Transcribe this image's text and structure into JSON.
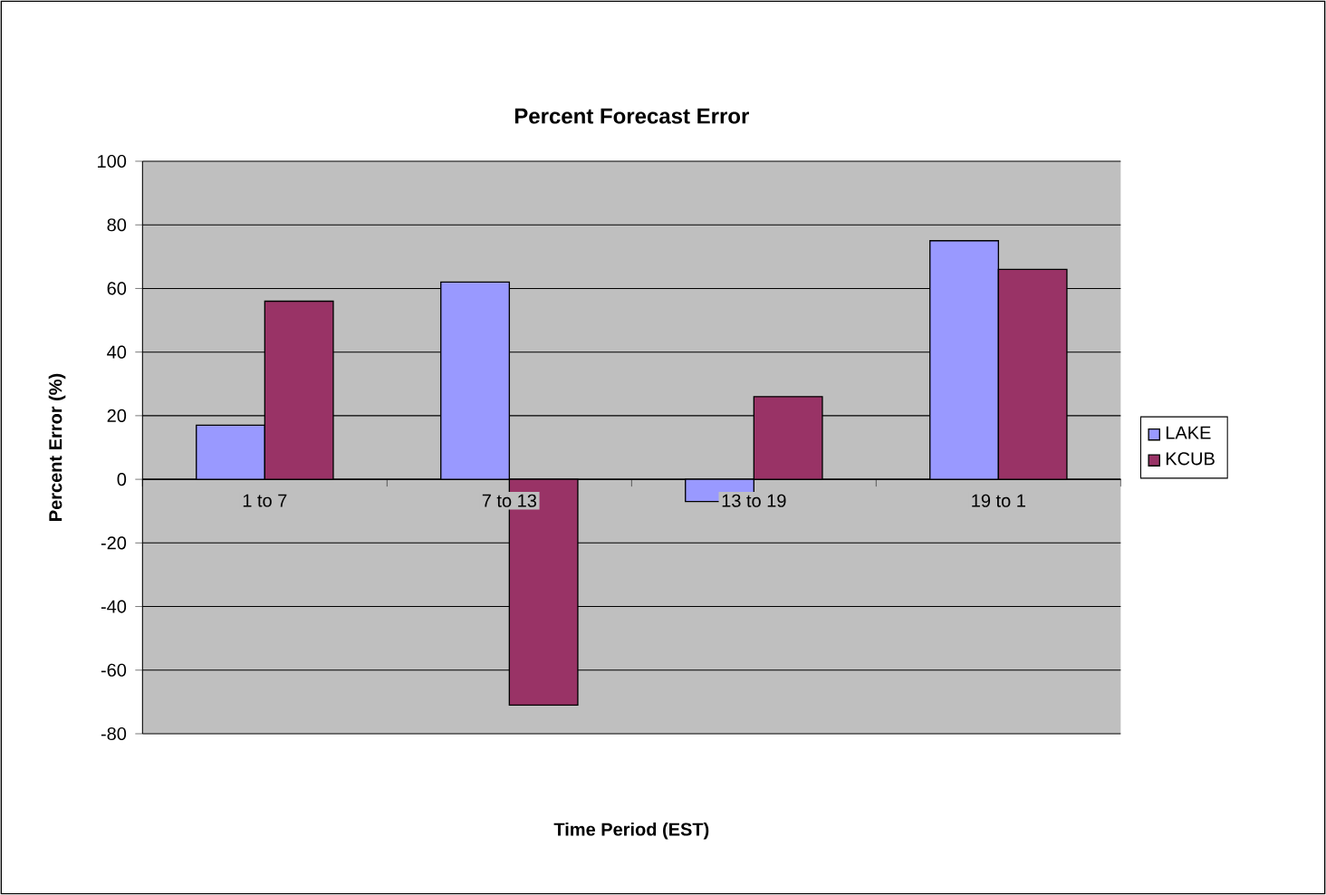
{
  "chart_data": {
    "type": "bar",
    "title": "Percent Forecast Error",
    "xlabel": "Time Period (EST)",
    "ylabel": "Percent Error (%)",
    "categories": [
      "1 to 7",
      "7 to 13",
      "13 to 19",
      "19 to 1"
    ],
    "series": [
      {
        "name": "LAKE",
        "color": "#9999ff",
        "values": [
          17,
          62,
          -7,
          75
        ]
      },
      {
        "name": "KCUB",
        "color": "#993366",
        "values": [
          56,
          -71,
          26,
          66
        ]
      }
    ],
    "ylim": [
      -80,
      100
    ],
    "yticks": [
      -80,
      -60,
      -40,
      -20,
      0,
      20,
      40,
      60,
      80,
      100
    ],
    "grid": "y",
    "legend": "right"
  }
}
